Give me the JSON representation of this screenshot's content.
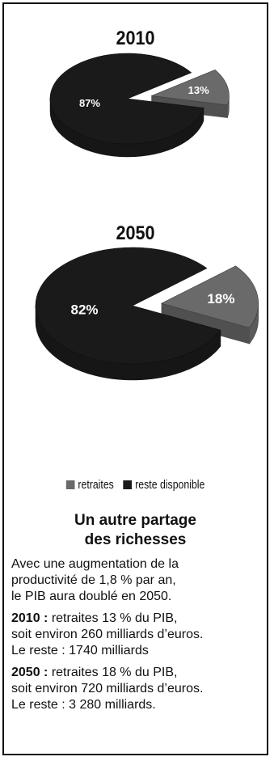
{
  "chart_data": [
    {
      "type": "pie",
      "title": "2010",
      "slices": [
        {
          "label": "retraites",
          "value": 13,
          "display": "13%"
        },
        {
          "label": "reste disponible",
          "value": 87,
          "display": "87%"
        }
      ],
      "colors": {
        "retraites": "#6a6a6a",
        "reste disponible": "#1a1a1a"
      },
      "exploded": "retraites"
    },
    {
      "type": "pie",
      "title": "2050",
      "slices": [
        {
          "label": "retraites",
          "value": 18,
          "display": "18%"
        },
        {
          "label": "reste disponible",
          "value": 82,
          "display": "82%"
        }
      ],
      "colors": {
        "retraites": "#6a6a6a",
        "reste disponible": "#1a1a1a"
      },
      "exploded": "retraites"
    }
  ],
  "legend": {
    "items": [
      {
        "label": "retraites",
        "color": "#6a6a6a"
      },
      {
        "label": "reste disponible",
        "color": "#1a1a1a"
      }
    ]
  },
  "heading": {
    "line1": "Un autre partage",
    "line2": "des richesses"
  },
  "paragraphs": {
    "intro": {
      "line1": "Avec une augmentation de la",
      "line2": "productivité de 1,8 % par an,",
      "line3": "le PIB aura doublé en 2050."
    },
    "p2010": {
      "year": "2010 :",
      "line1_rest": " retraites 13 % du PIB,",
      "line2": "soit environ 260 milliards d’euros.",
      "line3": "Le reste : 1740 milliards"
    },
    "p2050": {
      "year": "2050 :",
      "line1_rest": " retraites 18 % du PIB,",
      "line2": "soit environ 720 milliards d’euros.",
      "line3": "Le reste : 3 280 milliards."
    }
  }
}
